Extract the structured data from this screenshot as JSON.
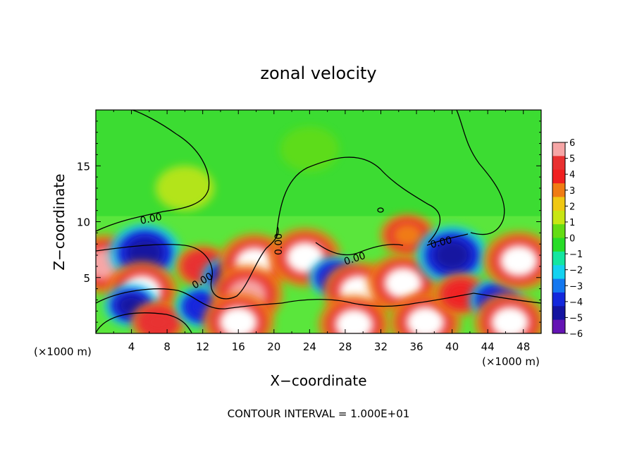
{
  "chart_data": {
    "type": "heatmap",
    "title": "zonal velocity",
    "xlabel": "X−coordinate",
    "ylabel": "Z−coordinate",
    "x_unit_left": "(×1000 m)",
    "x_unit_right": "(×1000 m)",
    "xlim": [
      0,
      50
    ],
    "ylim": [
      0,
      20
    ],
    "x_ticks": [
      4,
      8,
      12,
      16,
      20,
      24,
      28,
      32,
      36,
      40,
      44,
      48
    ],
    "x_tick_labels": [
      "4",
      "8",
      "12",
      "16",
      "20",
      "24",
      "28",
      "32",
      "36",
      "40",
      "44",
      "48"
    ],
    "y_ticks": [
      5,
      10,
      15
    ],
    "y_tick_labels": [
      "5",
      "10",
      "15"
    ],
    "colorbar": {
      "min": -6,
      "max": 6,
      "ticks": [
        6,
        5,
        4,
        3,
        2,
        1,
        0,
        -1,
        -2,
        -3,
        -4,
        -5,
        -6
      ],
      "tick_labels": [
        "6",
        "5",
        "4",
        "3",
        "2",
        "1",
        "0",
        "−1",
        "−2",
        "−3",
        "−4",
        "−5",
        "−6"
      ],
      "colors": [
        "#f6a6a6",
        "#e83030",
        "#f02020",
        "#f07c14",
        "#f0c814",
        "#c8e614",
        "#64dc14",
        "#28dc28",
        "#14e6a0",
        "#14d2f0",
        "#1478f0",
        "#1428dc",
        "#1414a0",
        "#6414b4"
      ]
    },
    "contour_labels": [
      "0.00",
      "0.00",
      "0.00",
      "0.00",
      "0.00",
      "0.00"
    ],
    "footer": "CONTOUR INTERVAL = 1.000E+01",
    "features": [
      {
        "x": 1.0,
        "z": 6.2,
        "value": 5.5
      },
      {
        "x": 5.5,
        "z": 7.2,
        "value": -5.0
      },
      {
        "x": 5.2,
        "z": 3.8,
        "value": 7.0
      },
      {
        "x": 4.0,
        "z": 2.5,
        "value": -4.5
      },
      {
        "x": 7.0,
        "z": 1.0,
        "value": 4.5
      },
      {
        "x": 12.0,
        "z": 6.0,
        "value": 4.5
      },
      {
        "x": 12.0,
        "z": 2.4,
        "value": -3.5
      },
      {
        "x": 15.0,
        "z": 5.0,
        "value": -4.5
      },
      {
        "x": 17.8,
        "z": 6.3,
        "value": 7.0
      },
      {
        "x": 17.0,
        "z": 3.5,
        "value": 5.5
      },
      {
        "x": 16.0,
        "z": 1.0,
        "value": 7.0
      },
      {
        "x": 23.5,
        "z": 6.8,
        "value": 7.0
      },
      {
        "x": 27.0,
        "z": 5.0,
        "value": -3.5
      },
      {
        "x": 29.5,
        "z": 3.8,
        "value": 7.0
      },
      {
        "x": 29.0,
        "z": 0.8,
        "value": 7.0
      },
      {
        "x": 34.5,
        "z": 4.5,
        "value": 7.0
      },
      {
        "x": 35.0,
        "z": 8.8,
        "value": 3.0
      },
      {
        "x": 37.0,
        "z": 1.0,
        "value": 7.0
      },
      {
        "x": 40.0,
        "z": 7.0,
        "value": -5.0
      },
      {
        "x": 41.0,
        "z": 3.5,
        "value": 4.0
      },
      {
        "x": 45.0,
        "z": 3.0,
        "value": -4.0
      },
      {
        "x": 47.5,
        "z": 6.5,
        "value": 7.0
      },
      {
        "x": 46.5,
        "z": 1.0,
        "value": 7.0
      },
      {
        "x": 24.0,
        "z": 16.5,
        "value": 0.3
      },
      {
        "x": 10.0,
        "z": 13.0,
        "value": 1.0
      }
    ]
  }
}
